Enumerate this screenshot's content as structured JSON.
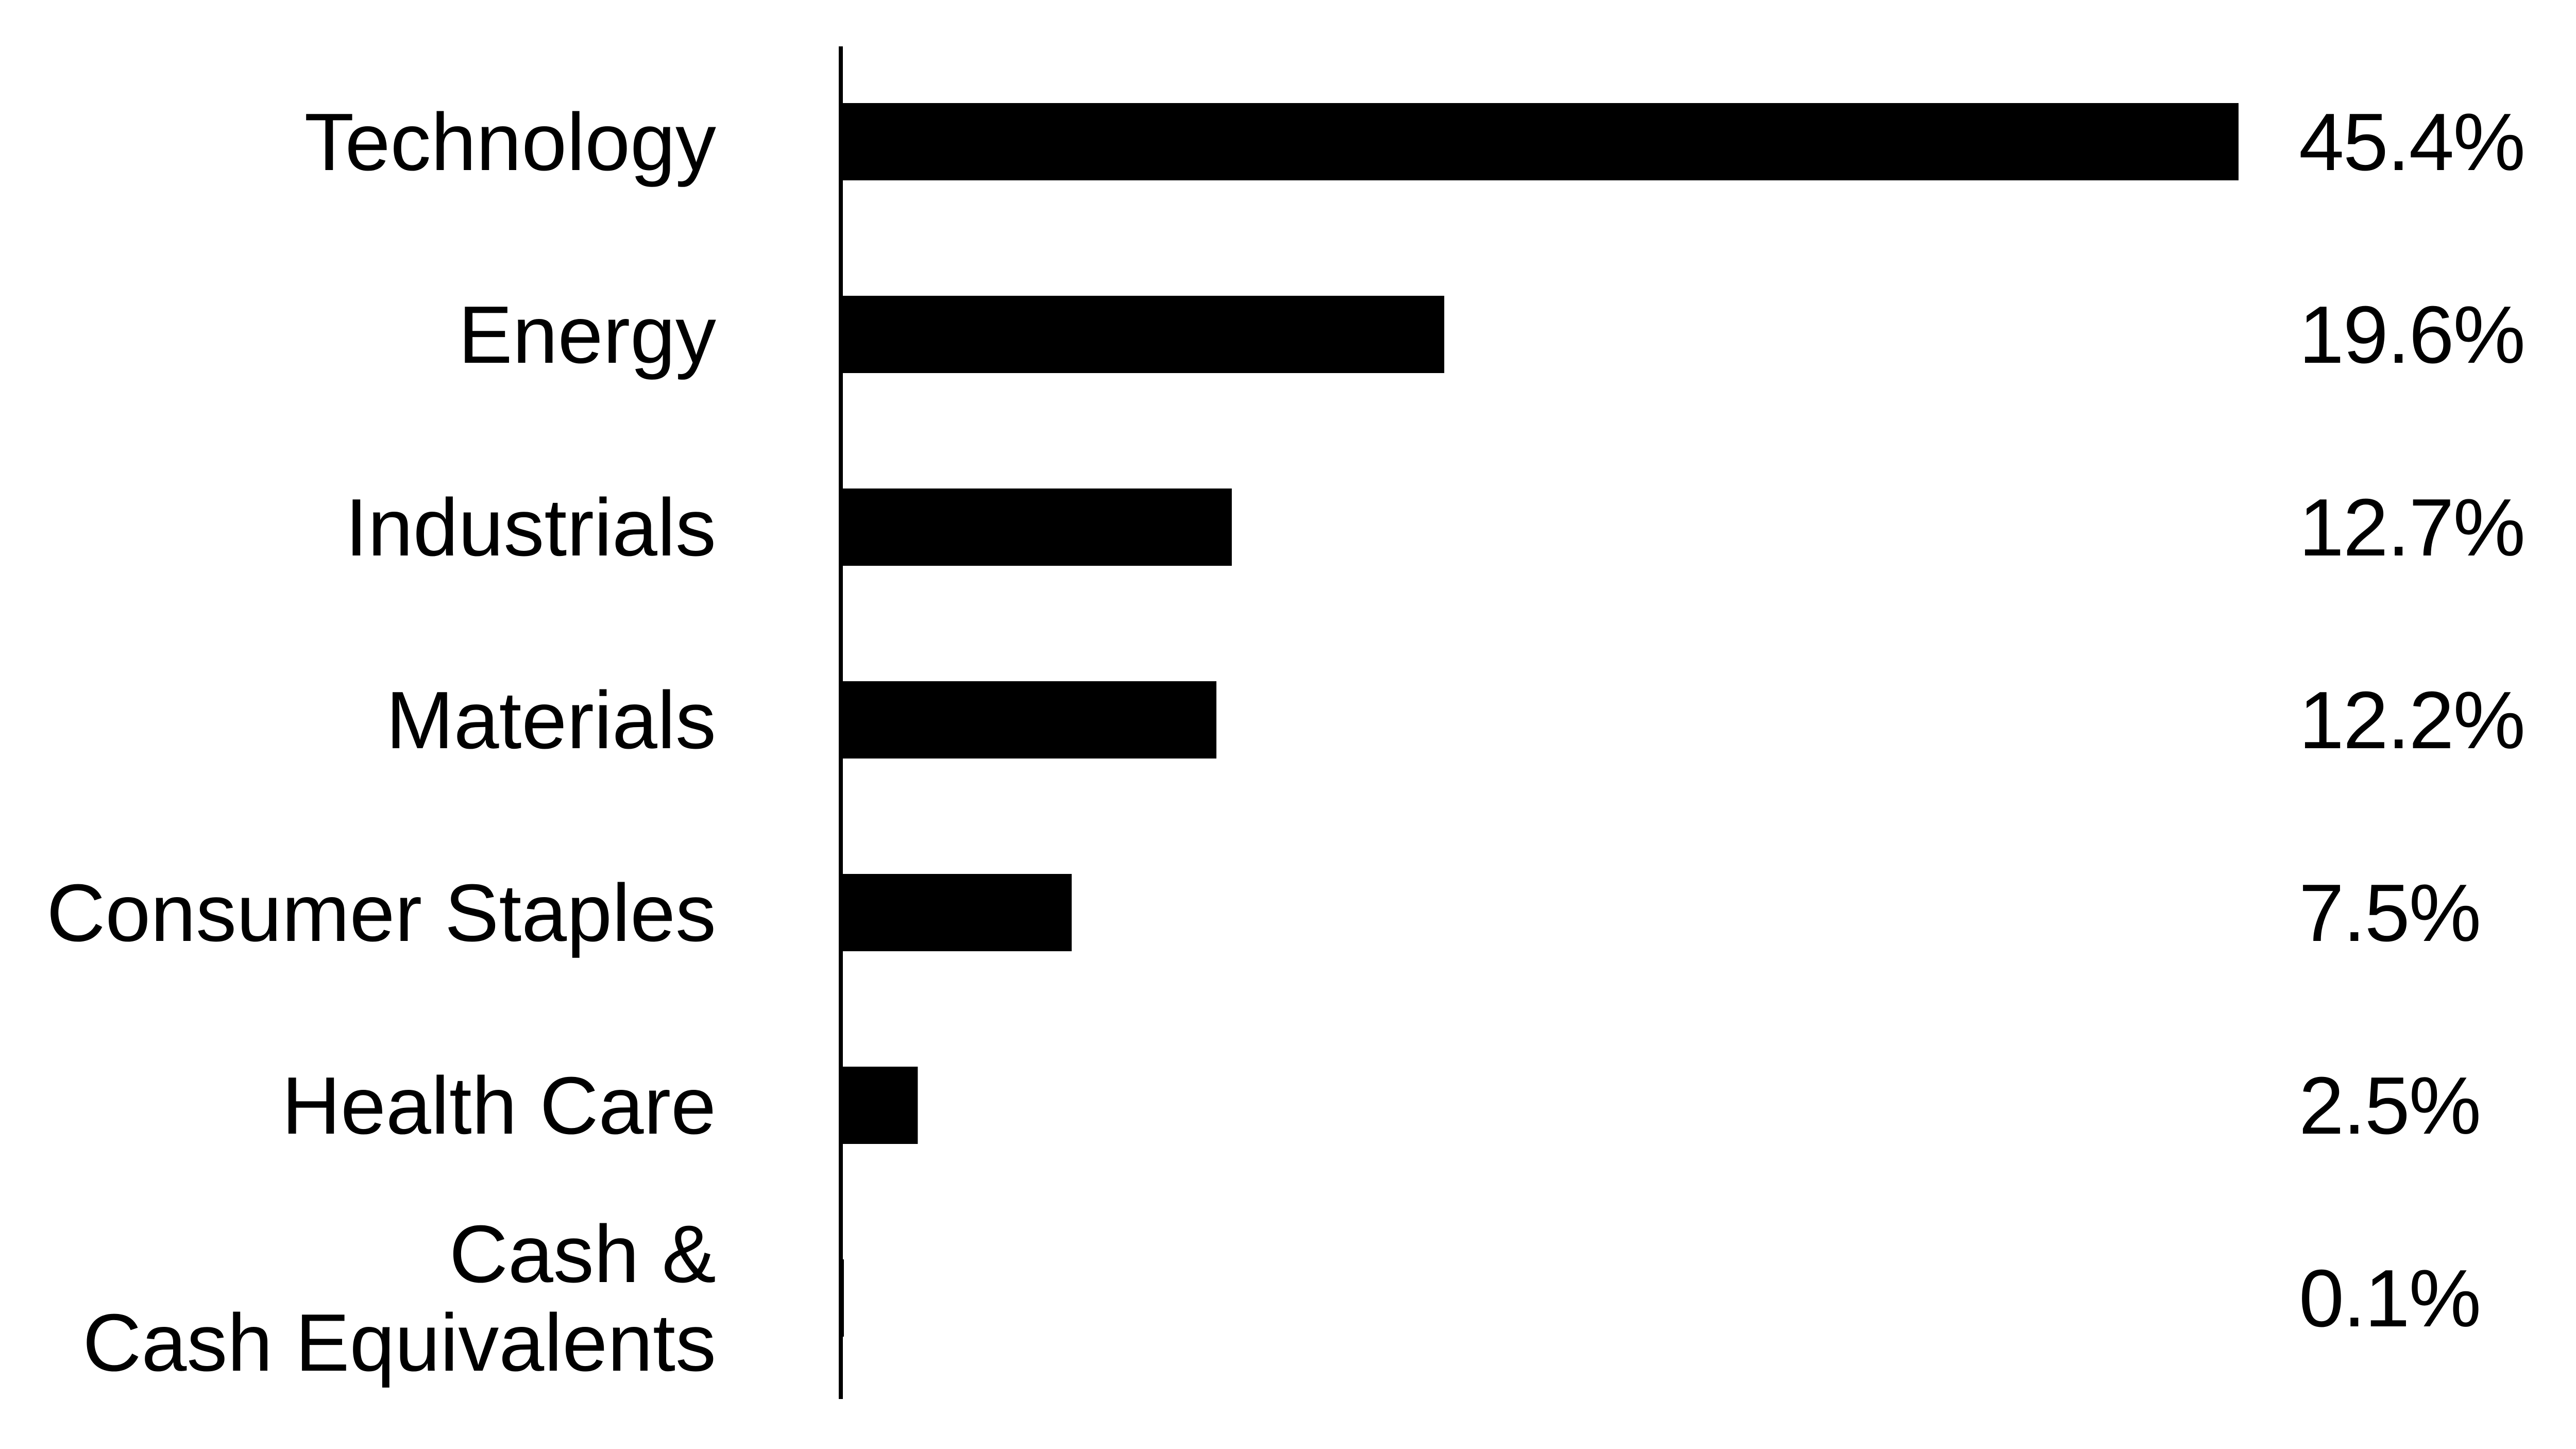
{
  "chart_data": {
    "type": "bar",
    "orientation": "horizontal",
    "title": "",
    "xlabel": "",
    "ylabel": "",
    "categories": [
      "Technology",
      "Energy",
      "Industrials",
      "Materials",
      "Consumer Staples",
      "Health Care",
      "Cash & Cash Equivalents"
    ],
    "category_lines": [
      [
        "Technology"
      ],
      [
        "Energy"
      ],
      [
        "Industrials"
      ],
      [
        "Materials"
      ],
      [
        "Consumer Staples"
      ],
      [
        "Health Care"
      ],
      [
        "Cash &",
        "Cash Equivalents"
      ]
    ],
    "values": [
      45.4,
      19.6,
      12.7,
      12.2,
      7.5,
      2.5,
      0.1
    ],
    "value_labels": [
      "45.4%",
      "19.6%",
      "12.7%",
      "12.2%",
      "7.5%",
      "2.5%",
      "0.1%"
    ],
    "xlim": [
      0,
      45.4
    ],
    "grid": false,
    "legend": "none",
    "bar_color": "#000000",
    "axis_color": "#000000"
  }
}
